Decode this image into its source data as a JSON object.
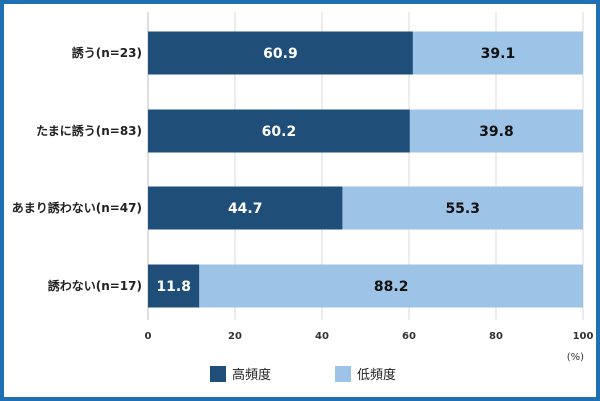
{
  "chart_data": {
    "type": "bar",
    "orientation": "horizontal",
    "stacked": true,
    "categories": [
      "誘う(n=23)",
      "たまに誘う(n=83)",
      "あまり誘わない(n=47)",
      "誘わない(n=17)"
    ],
    "series": [
      {
        "name": "高頻度",
        "values": [
          60.9,
          60.2,
          44.7,
          11.8
        ],
        "color": "#1f4e79",
        "label_color": "#ffffff"
      },
      {
        "name": "低頻度",
        "values": [
          39.1,
          39.8,
          55.3,
          88.2
        ],
        "color": "#9dc3e6",
        "label_color": "#111111"
      }
    ],
    "xlim": [
      0,
      100
    ],
    "xticks": [
      0,
      20,
      40,
      60,
      80,
      100
    ],
    "unit_label": "(%)",
    "grid": true,
    "legend_position": "bottom"
  }
}
